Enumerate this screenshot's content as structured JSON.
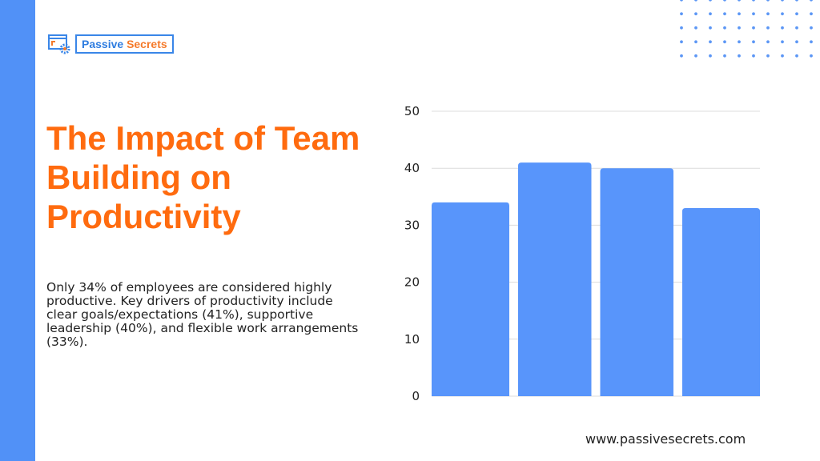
{
  "brand": {
    "name_part1": "Passive",
    "name_part2": "Secrets",
    "accent": "#5191f7",
    "title_color": "#ff6b0f"
  },
  "title": "The Impact of Team Building on Productivity",
  "description": "Only 34% of employees are considered highly productive. Key drivers of productivity include clear goals/expectations (41%), supportive leadership (40%), and flexible work arrangements (33%).",
  "footer_url": "www.passivesecrets.com",
  "chart_data": {
    "type": "bar",
    "categories": [
      "",
      "",
      "",
      ""
    ],
    "values": [
      34,
      41,
      40,
      33
    ],
    "ylim": [
      0,
      50
    ],
    "yticks": [
      "0",
      "10",
      "20",
      "30",
      "40",
      "50"
    ],
    "grid": true,
    "bar_color": "#5895fb"
  }
}
